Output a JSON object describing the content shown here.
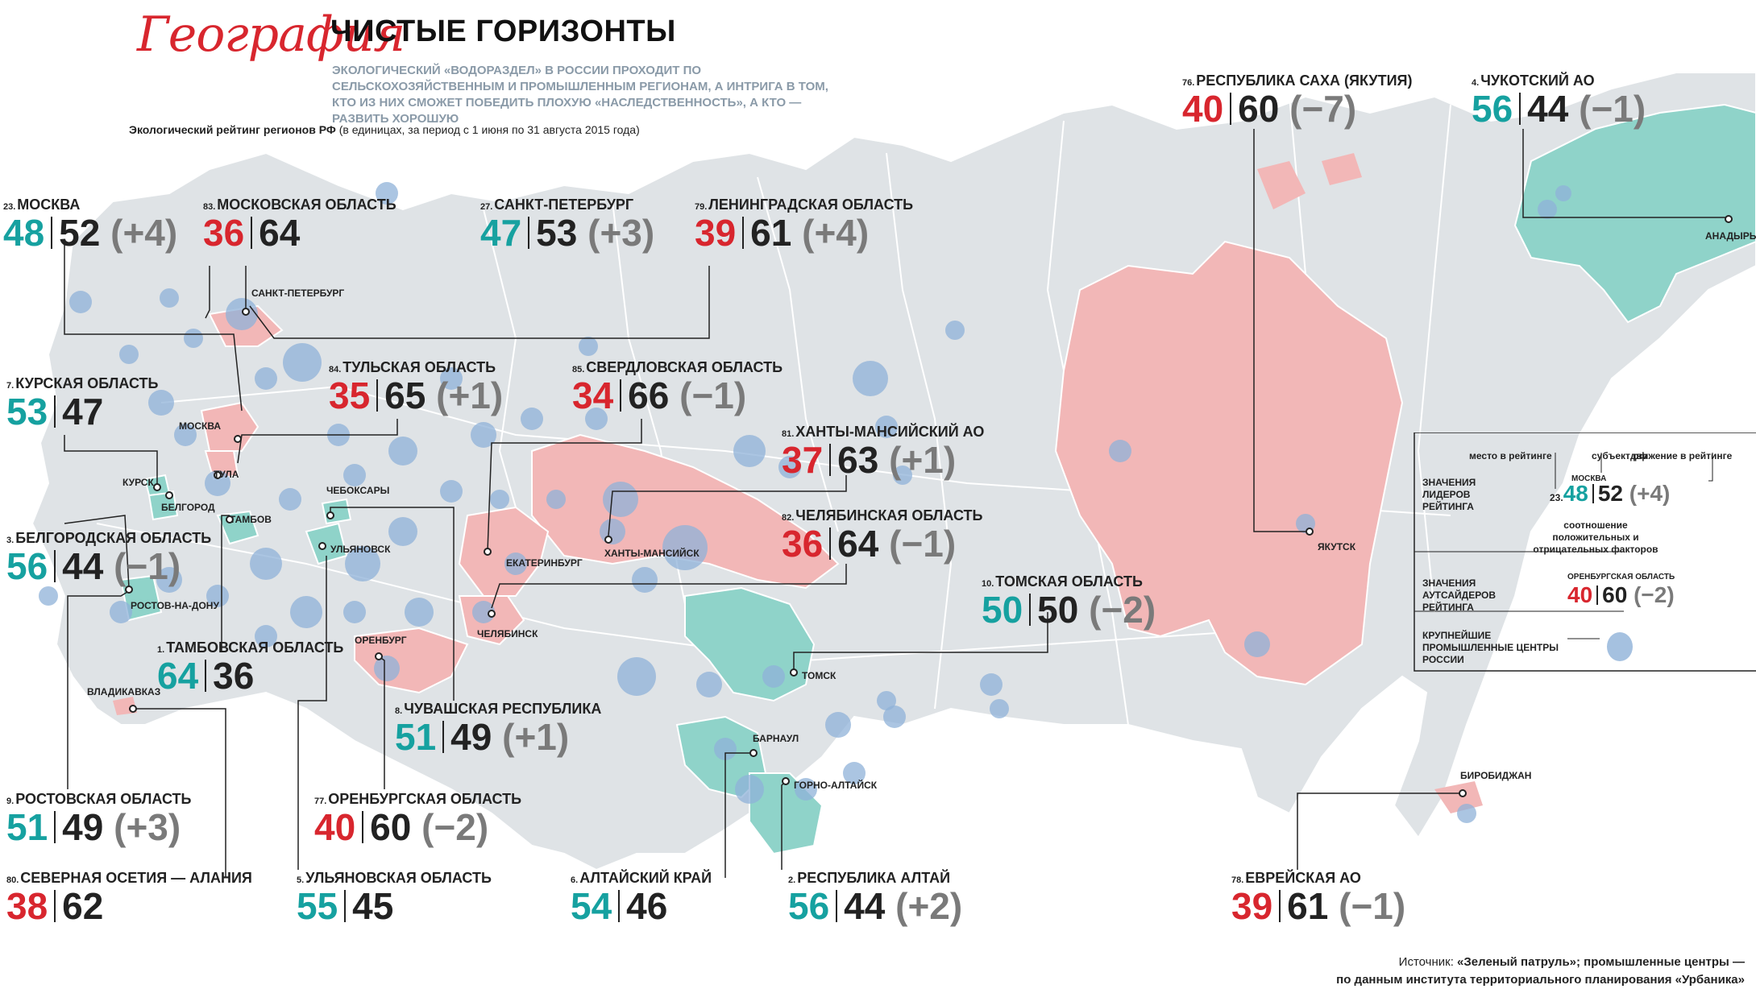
{
  "header": {
    "rubric": "География",
    "title": "ЧИСТЫЕ ГОРИЗОНТЫ",
    "lead": "Экологический «водораздел» в России проходит по сельскохозяйственным и промышленным регионам, а интрига в том, кто из них сможет победить плохую «наследственность», а кто — развить хорошую",
    "subtitle_bold": "Экологический рейтинг регионов РФ",
    "subtitle_rest": " (в единицах, за период с 1 июня по 31 августа 2015 года)"
  },
  "colors": {
    "leader": "#16a1a0",
    "outsider": "#d8262e",
    "land": "#dfe3e6",
    "leader_fill": "#8fd3c9",
    "outsider_fill": "#f2b7b7",
    "industrial": "#8fb2d8"
  },
  "regions": [
    {
      "rank": "23.",
      "name": "Москва",
      "pos": "48",
      "neg": "52",
      "chg": "(+4)",
      "tone": "leader"
    },
    {
      "rank": "83.",
      "name": "Московская область",
      "pos": "36",
      "neg": "64",
      "chg": "",
      "tone": "outsider"
    },
    {
      "rank": "27.",
      "name": "Санкт-Петербург",
      "pos": "47",
      "neg": "53",
      "chg": "(+3)",
      "tone": "leader"
    },
    {
      "rank": "79.",
      "name": "Ленинградская область",
      "pos": "39",
      "neg": "61",
      "chg": "(+4)",
      "tone": "outsider"
    },
    {
      "rank": "76.",
      "name": "Республика Саха (Якутия)",
      "pos": "40",
      "neg": "60",
      "chg": "(−7)",
      "tone": "outsider"
    },
    {
      "rank": "4.",
      "name": "Чукотский АО",
      "pos": "56",
      "neg": "44",
      "chg": "(−1)",
      "tone": "leader"
    },
    {
      "rank": "7.",
      "name": "Курская область",
      "pos": "53",
      "neg": "47",
      "chg": "",
      "tone": "leader"
    },
    {
      "rank": "84.",
      "name": "Тульская область",
      "pos": "35",
      "neg": "65",
      "chg": "(+1)",
      "tone": "outsider"
    },
    {
      "rank": "85.",
      "name": "Свердловская область",
      "pos": "34",
      "neg": "66",
      "chg": "(−1)",
      "tone": "outsider"
    },
    {
      "rank": "81.",
      "name": "Ханты-Мансийский АО",
      "pos": "37",
      "neg": "63",
      "chg": "(+1)",
      "tone": "outsider"
    },
    {
      "rank": "82.",
      "name": "Челябинская область",
      "pos": "36",
      "neg": "64",
      "chg": "(−1)",
      "tone": "outsider"
    },
    {
      "rank": "3.",
      "name": "Белгородская область",
      "pos": "56",
      "neg": "44",
      "chg": "(−1)",
      "tone": "leader"
    },
    {
      "rank": "1.",
      "name": "Тамбовская область",
      "pos": "64",
      "neg": "36",
      "chg": "",
      "tone": "leader"
    },
    {
      "rank": "10.",
      "name": "Томская область",
      "pos": "50",
      "neg": "50",
      "chg": "(−2)",
      "tone": "leader"
    },
    {
      "rank": "8.",
      "name": "Чувашская Республика",
      "pos": "51",
      "neg": "49",
      "chg": "(+1)",
      "tone": "leader"
    },
    {
      "rank": "9.",
      "name": "Ростовская область",
      "pos": "51",
      "neg": "49",
      "chg": "(+3)",
      "tone": "leader"
    },
    {
      "rank": "77.",
      "name": "Оренбургская область",
      "pos": "40",
      "neg": "60",
      "chg": "(−2)",
      "tone": "outsider"
    },
    {
      "rank": "80.",
      "name": "Северная Осетия — Алания",
      "pos": "38",
      "neg": "62",
      "chg": "",
      "tone": "outsider"
    },
    {
      "rank": "5.",
      "name": "Ульяновская область",
      "pos": "55",
      "neg": "45",
      "chg": "",
      "tone": "leader"
    },
    {
      "rank": "6.",
      "name": "Алтайский край",
      "pos": "54",
      "neg": "46",
      "chg": "",
      "tone": "leader"
    },
    {
      "rank": "2.",
      "name": "Республика Алтай",
      "pos": "56",
      "neg": "44",
      "chg": "(+2)",
      "tone": "leader"
    },
    {
      "rank": "78.",
      "name": "Еврейская АО",
      "pos": "39",
      "neg": "61",
      "chg": "(−1)",
      "tone": "outsider"
    }
  ],
  "cities": [
    "Санкт-Петербург",
    "Москва",
    "Тула",
    "Курск",
    "Белгород",
    "Тамбов",
    "Чебоксары",
    "Ульяновск",
    "Екатеринбург",
    "Ханты-Мансийск",
    "Ростов-на-Дону",
    "Оренбург",
    "Челябинск",
    "Владикавказ",
    "Томск",
    "Барнаул",
    "Горно-Алтайск",
    "Якутск",
    "Анадырь",
    "Биробиджан"
  ],
  "legend": {
    "place": "место в рейтинге",
    "subject": "субъект РФ",
    "movement": "движение в рейтинге",
    "leaders": "значения лидеров рейтинга",
    "sample_city": "Москва",
    "sample_rank": "23.",
    "sample_pos": "48",
    "sample_neg": "52",
    "sample_chg": "(+4)",
    "ratio": "соотношение положительных и отрицательных факторов",
    "outsiders": "значения аутсайдеров рейтинга",
    "outsider_city": "Оренбургская область",
    "outsider_pos": "40",
    "outsider_neg": "60",
    "outsider_chg": "(−2)",
    "industrial": "крупнейшие промышленные центры России"
  },
  "source": {
    "line1_prefix": "Источник: ",
    "line1_bold": "«Зеленый патруль»; промышленные центры —",
    "line2_bold": "по данным института территориального планирования «Урбаника»"
  }
}
